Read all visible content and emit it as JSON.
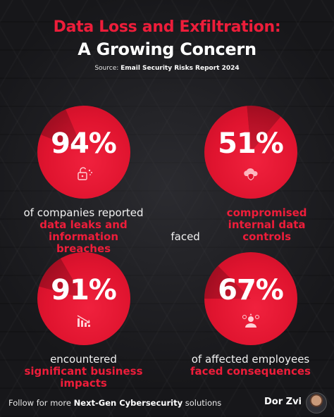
{
  "header": {
    "title_line1": "Data Loss and Exfiltration:",
    "title_line2": "A Growing Concern",
    "source_prefix": "Source:",
    "source_name": "Email Security Risks Report 2024"
  },
  "stats": [
    {
      "value": "94%",
      "icon": "unlock-icon",
      "text_plain": "of companies reported",
      "text_highlight": "data leaks and information breaches"
    },
    {
      "value": "51%",
      "icon": "cloud-shield-icon",
      "text_plain": "faced",
      "text_highlight": "compromised internal data controls"
    },
    {
      "value": "91%",
      "icon": "chart-decline-icon",
      "text_plain": "encountered",
      "text_highlight": "significant business impacts"
    },
    {
      "value": "67%",
      "icon": "employee-warning-icon",
      "text_plain": "of affected employees",
      "text_highlight": "faced consequences"
    }
  ],
  "footer": {
    "prefix": "Follow for more",
    "highlight": "Next-Gen Cybersecurity",
    "suffix": "solutions",
    "author": "Dor Zvi"
  },
  "colors": {
    "accent": "#ee1d3a",
    "background": "#17171a"
  }
}
